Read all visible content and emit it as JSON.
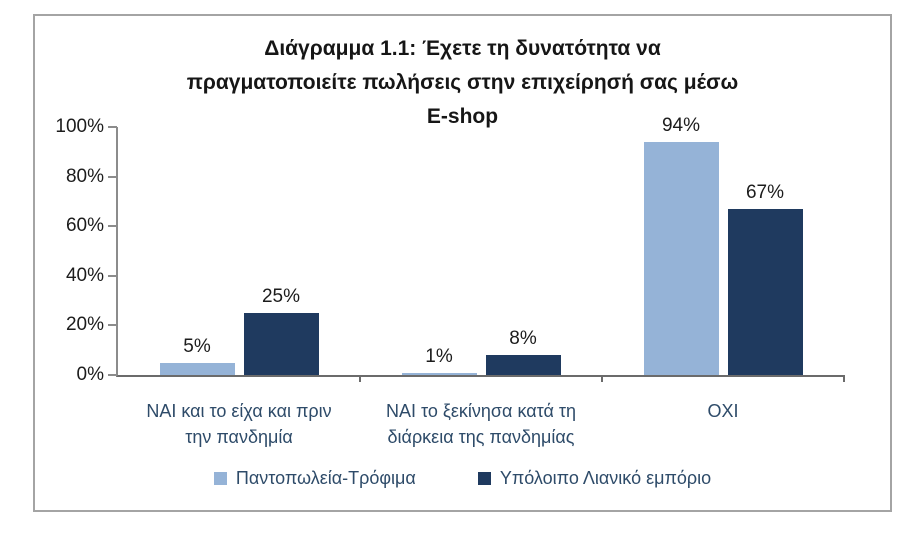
{
  "chart_data": {
    "type": "bar",
    "title": "Διάγραμμα 1.1: Έχετε τη δυνατότητα να πραγματοποιείτε πωλήσεις στην επιχείρησή σας μέσω E-shop",
    "title_lines": [
      "Διάγραμμα 1.1: Έχετε τη δυνατότητα να",
      "πραγματοποιείτε πωλήσεις στην επιχείρησή σας μέσω",
      "E-shop"
    ],
    "categories": [
      {
        "label": "ΝΑΙ και το είχα και πριν την πανδημία",
        "lines": [
          "ΝΑΙ και το είχα και πριν",
          "την πανδημία"
        ]
      },
      {
        "label": "ΝΑΙ το ξεκίνησα κατά τη διάρκεια της πανδημίας",
        "lines": [
          "ΝΑΙ το ξεκίνησα κατά τη",
          "διάρκεια της πανδημίας"
        ]
      },
      {
        "label": "ΟΧΙ",
        "lines": [
          "ΟΧΙ"
        ]
      }
    ],
    "series": [
      {
        "name": "Παντοπωλεία-Τρόφιμα",
        "color": "#95B3D7",
        "values": [
          5,
          1,
          94
        ]
      },
      {
        "name": "Υπόλοιπο Λιανικό εμπόριο",
        "color": "#1F3A5F",
        "values": [
          25,
          8,
          67
        ]
      }
    ],
    "value_suffix": "%",
    "data_labels": [
      "5%",
      "25%",
      "1%",
      "8%",
      "94%",
      "67%"
    ],
    "xlabel": "",
    "ylabel": "",
    "ylim": [
      0,
      100
    ],
    "yticks": [
      0,
      20,
      40,
      60,
      80,
      100
    ],
    "ytick_labels": [
      "0%",
      "20%",
      "40%",
      "60%",
      "80%",
      "100%"
    ],
    "grid": false,
    "legend_position": "bottom"
  }
}
